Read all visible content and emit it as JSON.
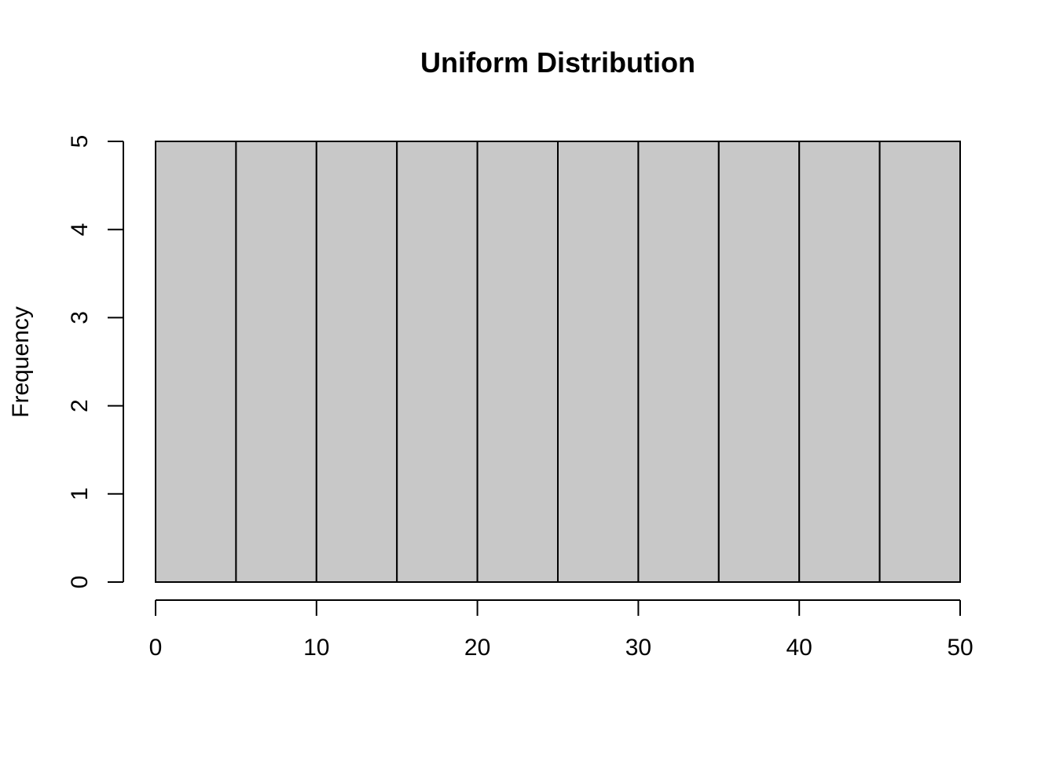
{
  "chart_data": {
    "type": "bar",
    "subtype": "histogram",
    "title": "Uniform Distribution",
    "xlabel": "",
    "ylabel": "Frequency",
    "bin_edges": [
      0,
      5,
      10,
      15,
      20,
      25,
      30,
      35,
      40,
      45,
      50
    ],
    "values": [
      5,
      5,
      5,
      5,
      5,
      5,
      5,
      5,
      5,
      5
    ],
    "xlim": [
      0,
      50
    ],
    "ylim": [
      0,
      5
    ],
    "x_ticks": [
      0,
      10,
      20,
      30,
      40,
      50
    ],
    "y_ticks": [
      0,
      1,
      2,
      3,
      4,
      5
    ],
    "x_tick_labels": [
      "0",
      "10",
      "20",
      "30",
      "40",
      "50"
    ],
    "y_tick_labels": [
      "0",
      "1",
      "2",
      "3",
      "4",
      "5"
    ],
    "grid": false,
    "legend": "none",
    "colors": {
      "bar_fill": "#c8c8c8",
      "bar_stroke": "#000000",
      "axis": "#000000",
      "background": "#ffffff"
    }
  }
}
